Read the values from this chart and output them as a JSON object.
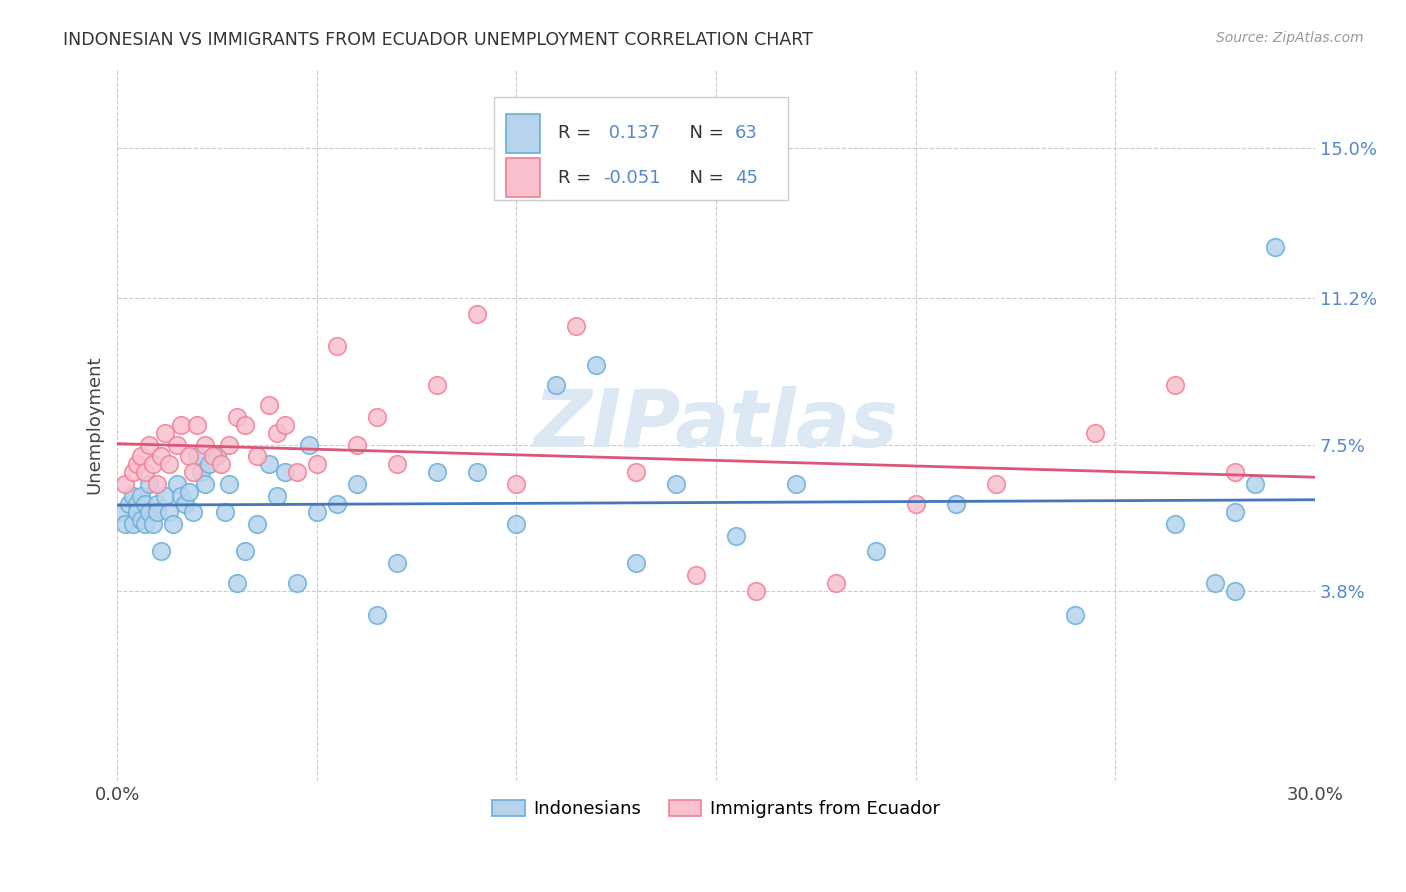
{
  "title": "INDONESIAN VS IMMIGRANTS FROM ECUADOR UNEMPLOYMENT CORRELATION CHART",
  "source": "Source: ZipAtlas.com",
  "ylabel": "Unemployment",
  "y_ticks": [
    0.038,
    0.075,
    0.112,
    0.15
  ],
  "y_tick_labels": [
    "3.8%",
    "7.5%",
    "11.2%",
    "15.0%"
  ],
  "xlim": [
    0.0,
    0.3
  ],
  "ylim": [
    -0.01,
    0.17
  ],
  "blue_R": 0.137,
  "blue_N": 63,
  "pink_R": -0.051,
  "pink_N": 45,
  "blue_color": "#b8d4ed",
  "pink_color": "#f9c0ce",
  "blue_edge_color": "#6aaed6",
  "pink_edge_color": "#f08098",
  "blue_line_color": "#4477bb",
  "pink_line_color": "#dd5577",
  "tick_color": "#5588cc",
  "watermark_text": "ZIPatlas",
  "legend_entries": [
    "Indonesians",
    "Immigrants from Ecuador"
  ],
  "blue_x": [
    0.001,
    0.002,
    0.003,
    0.004,
    0.004,
    0.005,
    0.005,
    0.006,
    0.006,
    0.007,
    0.007,
    0.008,
    0.008,
    0.009,
    0.01,
    0.01,
    0.011,
    0.012,
    0.013,
    0.014,
    0.015,
    0.016,
    0.017,
    0.018,
    0.019,
    0.02,
    0.021,
    0.022,
    0.023,
    0.025,
    0.027,
    0.028,
    0.03,
    0.032,
    0.035,
    0.038,
    0.04,
    0.042,
    0.045,
    0.048,
    0.05,
    0.055,
    0.06,
    0.065,
    0.07,
    0.08,
    0.09,
    0.1,
    0.11,
    0.12,
    0.13,
    0.14,
    0.155,
    0.17,
    0.19,
    0.21,
    0.24,
    0.265,
    0.275,
    0.28,
    0.28,
    0.285,
    0.29
  ],
  "blue_y": [
    0.058,
    0.055,
    0.06,
    0.055,
    0.062,
    0.06,
    0.058,
    0.056,
    0.062,
    0.055,
    0.06,
    0.058,
    0.065,
    0.055,
    0.06,
    0.058,
    0.048,
    0.062,
    0.058,
    0.055,
    0.065,
    0.062,
    0.06,
    0.063,
    0.058,
    0.072,
    0.068,
    0.065,
    0.07,
    0.072,
    0.058,
    0.065,
    0.04,
    0.048,
    0.055,
    0.07,
    0.062,
    0.068,
    0.04,
    0.075,
    0.058,
    0.06,
    0.065,
    0.032,
    0.045,
    0.068,
    0.068,
    0.055,
    0.09,
    0.095,
    0.045,
    0.065,
    0.052,
    0.065,
    0.048,
    0.06,
    0.032,
    0.055,
    0.04,
    0.058,
    0.038,
    0.065,
    0.125
  ],
  "pink_x": [
    0.002,
    0.004,
    0.005,
    0.006,
    0.007,
    0.008,
    0.009,
    0.01,
    0.011,
    0.012,
    0.013,
    0.015,
    0.016,
    0.018,
    0.019,
    0.02,
    0.022,
    0.024,
    0.026,
    0.028,
    0.03,
    0.032,
    0.035,
    0.038,
    0.04,
    0.042,
    0.045,
    0.05,
    0.055,
    0.06,
    0.065,
    0.07,
    0.08,
    0.09,
    0.1,
    0.115,
    0.13,
    0.145,
    0.16,
    0.18,
    0.2,
    0.22,
    0.245,
    0.265,
    0.28
  ],
  "pink_y": [
    0.065,
    0.068,
    0.07,
    0.072,
    0.068,
    0.075,
    0.07,
    0.065,
    0.072,
    0.078,
    0.07,
    0.075,
    0.08,
    0.072,
    0.068,
    0.08,
    0.075,
    0.072,
    0.07,
    0.075,
    0.082,
    0.08,
    0.072,
    0.085,
    0.078,
    0.08,
    0.068,
    0.07,
    0.1,
    0.075,
    0.082,
    0.07,
    0.09,
    0.108,
    0.065,
    0.105,
    0.068,
    0.042,
    0.038,
    0.04,
    0.06,
    0.065,
    0.078,
    0.09,
    0.068
  ]
}
